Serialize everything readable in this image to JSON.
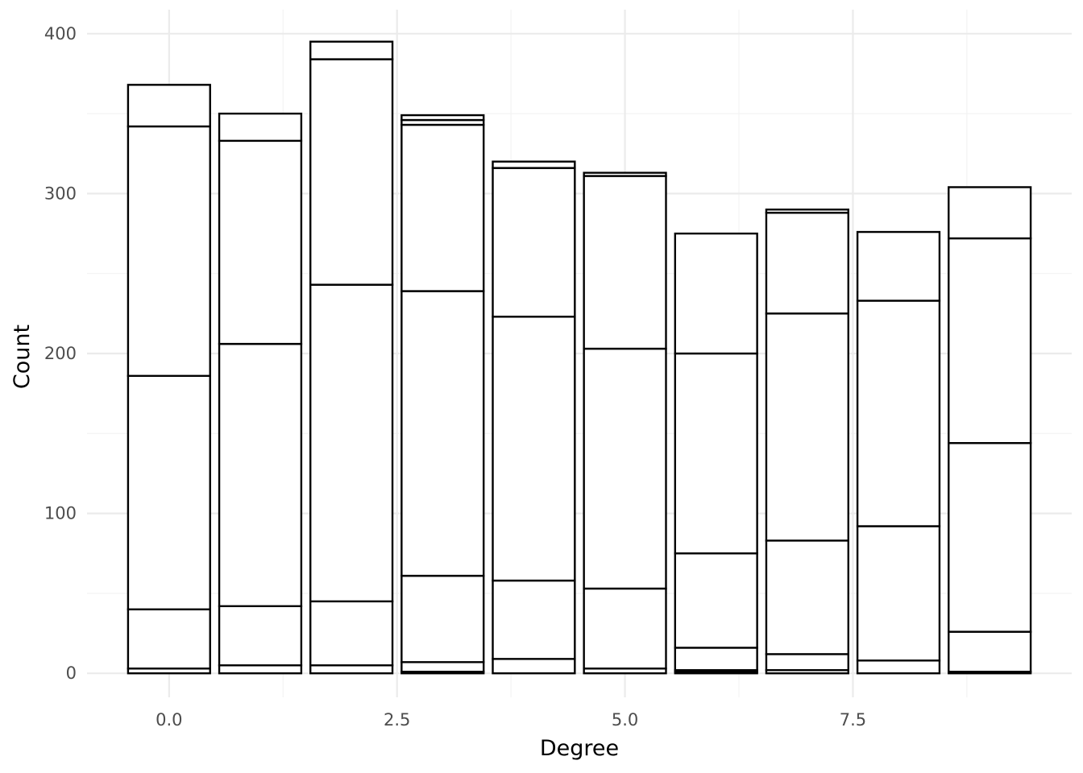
{
  "chart_data": {
    "type": "bar",
    "stacked": true,
    "title": "",
    "xlabel": "Degree",
    "ylabel": "Count",
    "xlim": [
      -0.9,
      9.9
    ],
    "ylim": [
      -15,
      415
    ],
    "grid": true,
    "x_ticks": [
      0.0,
      2.5,
      5.0,
      7.5
    ],
    "x_tick_labels": [
      "0.0",
      "2.5",
      "5.0",
      "7.5"
    ],
    "y_ticks": [
      0,
      100,
      200,
      300,
      400
    ],
    "y_tick_labels": [
      "0",
      "100",
      "200",
      "300",
      "400"
    ],
    "bar_width": 0.9,
    "fill_color": "#ffffff",
    "outline_color": "#000000",
    "grid_color": "#ebebeb",
    "categories": [
      0,
      1,
      2,
      3,
      4,
      5,
      6,
      7,
      8,
      9
    ],
    "stacks": [
      [
        3,
        37,
        146,
        156,
        26
      ],
      [
        5,
        37,
        164,
        127,
        17
      ],
      [
        5,
        40,
        198,
        141,
        11
      ],
      [
        1,
        6,
        54,
        178,
        104,
        3,
        3
      ],
      [
        9,
        49,
        165,
        93,
        4
      ],
      [
        3,
        50,
        150,
        108,
        2
      ],
      [
        1,
        1,
        14,
        59,
        125,
        75
      ],
      [
        2,
        10,
        71,
        142,
        63,
        2
      ],
      [
        8,
        84,
        141,
        43
      ],
      [
        1,
        25,
        118,
        128,
        32
      ]
    ],
    "totals": [
      368,
      350,
      395,
      349,
      320,
      313,
      275,
      290,
      276,
      304
    ]
  }
}
